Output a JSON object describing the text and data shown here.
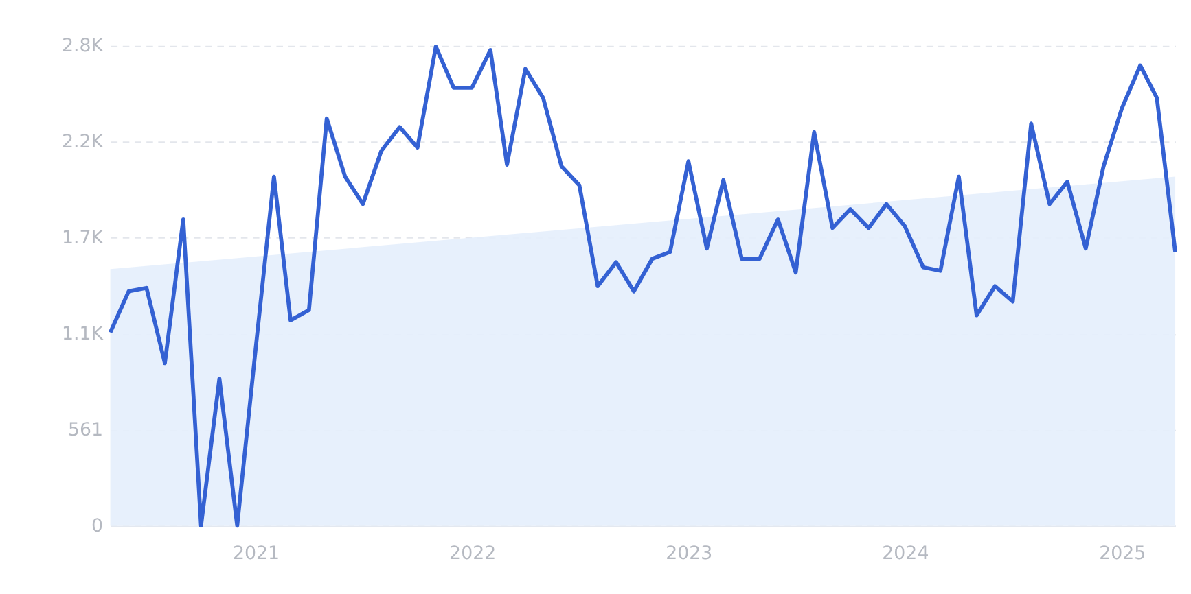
{
  "chart_data": {
    "type": "line",
    "x": [
      "2020-05",
      "2020-06",
      "2020-07",
      "2020-08",
      "2020-09",
      "2020-10",
      "2020-11",
      "2020-12",
      "2021-01",
      "2021-02",
      "2021-03",
      "2021-04",
      "2021-05",
      "2021-06",
      "2021-07",
      "2021-08",
      "2021-09",
      "2021-10",
      "2021-11",
      "2021-12",
      "2022-01",
      "2022-02",
      "2022-03",
      "2022-04",
      "2022-05",
      "2022-06",
      "2022-07",
      "2022-08",
      "2022-09",
      "2022-10",
      "2022-11",
      "2022-12",
      "2023-01",
      "2023-02",
      "2023-03",
      "2023-04",
      "2023-05",
      "2023-06",
      "2023-07",
      "2023-08",
      "2023-09",
      "2023-10",
      "2023-11",
      "2023-12",
      "2024-01",
      "2024-02",
      "2024-03",
      "2024-04",
      "2024-05",
      "2024-06",
      "2024-07",
      "2024-08",
      "2024-09",
      "2024-10",
      "2024-11",
      "2024-12",
      "2025-01",
      "2025-02",
      "2025-03",
      "2025-04"
    ],
    "series": [
      {
        "type": "area",
        "color": "#e4eefc",
        "x": [
          "2020-05",
          "2025-04"
        ],
        "values": [
          1500,
          2040
        ]
      },
      {
        "color": "#3461d3",
        "values": [
          1130,
          1370,
          1390,
          950,
          1790,
          0,
          860,
          0,
          1030,
          2040,
          1200,
          1260,
          2380,
          2040,
          1880,
          2190,
          2330,
          2210,
          2800,
          2560,
          2560,
          2780,
          2110,
          2670,
          2500,
          2100,
          1990,
          1400,
          1540,
          1370,
          1560,
          1600,
          2130,
          1620,
          2020,
          1560,
          1560,
          1790,
          1480,
          2300,
          1740,
          1850,
          1740,
          1880,
          1750,
          1510,
          1490,
          2040,
          1230,
          1400,
          1310,
          2350,
          1880,
          2010,
          1620,
          2100,
          2440,
          2690,
          2500,
          1600
        ]
      }
    ],
    "xlim": [
      "2020-05",
      "2025-04"
    ],
    "xticks": [
      {
        "value": "2021-01",
        "label": "2021"
      },
      {
        "value": "2022-01",
        "label": "2022"
      },
      {
        "value": "2023-01",
        "label": "2023"
      },
      {
        "value": "2024-01",
        "label": "2024"
      },
      {
        "value": "2025-01",
        "label": "2025"
      }
    ],
    "ylim": [
      0,
      2805
    ],
    "yticks": [
      0,
      561,
      {
        "value": 1122,
        "label": "1.1K"
      },
      {
        "value": 1683,
        "label": "1.7K"
      },
      {
        "value": 2244,
        "label": "2.2K"
      },
      {
        "value": 2805,
        "label": "2.8K"
      }
    ],
    "grid": "y",
    "marker": "none",
    "line_style": "solid"
  }
}
